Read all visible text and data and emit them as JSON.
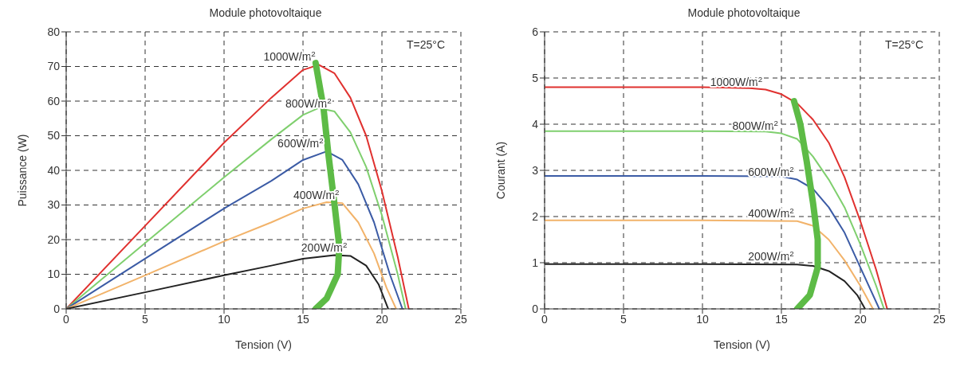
{
  "chart_data": [
    {
      "type": "line",
      "title": "Module photovoltaique",
      "xlabel": "Tension (V)",
      "ylabel": "Puissance (W)",
      "xlim": [
        0,
        25
      ],
      "xticks": [
        0,
        5,
        10,
        15,
        20,
        25
      ],
      "ylim": [
        0,
        80
      ],
      "yticks": [
        0,
        10,
        20,
        30,
        40,
        50,
        60,
        70,
        80
      ],
      "grid": true,
      "annotations": [
        "T=25°C"
      ],
      "series": [
        {
          "name": "1000W/m$^{2}$",
          "color": "#e0312f",
          "x": [
            0,
            5,
            10,
            13,
            15,
            16,
            17,
            18,
            19,
            20,
            21,
            21.7
          ],
          "values": [
            0,
            24,
            48,
            61,
            69,
            70.5,
            68,
            61,
            50,
            34,
            15,
            0
          ]
        },
        {
          "name": "800W/m$^{2}$",
          "color": "#7fcf6e",
          "x": [
            0,
            5,
            10,
            13,
            15,
            16,
            17,
            18,
            19,
            20,
            21,
            21.5
          ],
          "values": [
            0,
            19,
            38,
            49,
            56,
            58,
            57,
            51,
            41,
            27,
            10,
            0
          ]
        },
        {
          "name": "600W/m$^{2}$",
          "color": "#3b5ba5",
          "x": [
            0,
            5,
            10,
            13,
            15,
            16.5,
            17.5,
            18.5,
            19.5,
            20.5,
            21.3
          ],
          "values": [
            0,
            14.5,
            29,
            37,
            43,
            45.5,
            43,
            36,
            25,
            10,
            0
          ]
        },
        {
          "name": "400W/m$^{2}$",
          "color": "#f2b36a",
          "x": [
            0,
            5,
            10,
            13,
            15,
            16.5,
            17.5,
            18.5,
            19.5,
            20.3,
            20.9
          ],
          "values": [
            0,
            9.7,
            19.5,
            25,
            29,
            30.8,
            30.5,
            25,
            16,
            6,
            0
          ]
        },
        {
          "name": "200W/m$^{2}$",
          "color": "#222222",
          "x": [
            0,
            5,
            10,
            13,
            15,
            17,
            18,
            19,
            19.8,
            20.4
          ],
          "values": [
            0,
            4.8,
            9.7,
            12.5,
            14.5,
            15.5,
            15.3,
            12.5,
            7,
            0
          ]
        },
        {
          "color": "#5dbb46",
          "x": [
            15.8,
            16.3,
            16.6,
            17,
            17.3,
            17.2,
            16.5,
            15.8
          ],
          "values": [
            71,
            58,
            45,
            30,
            18,
            10,
            3,
            0
          ]
        }
      ]
    },
    {
      "type": "line",
      "title": "Module photovoltaique",
      "xlabel": "Tension (V)",
      "ylabel": "Courant (A)",
      "xlim": [
        0,
        25
      ],
      "xticks": [
        0,
        5,
        10,
        15,
        20,
        25
      ],
      "ylim": [
        0,
        6
      ],
      "yticks": [
        0,
        1,
        2,
        3,
        4,
        5,
        6
      ],
      "grid": true,
      "annotations": [
        "T=25°C"
      ],
      "series": [
        {
          "name": "1000W/m$^{2}$",
          "color": "#e0312f",
          "x": [
            0,
            10,
            13,
            14,
            15,
            16,
            17,
            18,
            19,
            20,
            21,
            21.7
          ],
          "values": [
            4.8,
            4.8,
            4.78,
            4.75,
            4.65,
            4.45,
            4.1,
            3.6,
            2.85,
            1.9,
            0.85,
            0
          ]
        },
        {
          "name": "800W/m$^{2}$",
          "color": "#7fcf6e",
          "x": [
            0,
            10,
            14,
            15,
            16,
            17,
            18,
            19,
            20,
            21,
            21.5
          ],
          "values": [
            3.85,
            3.85,
            3.84,
            3.8,
            3.68,
            3.3,
            2.8,
            2.2,
            1.4,
            0.5,
            0
          ]
        },
        {
          "name": "600W/m$^{2}$",
          "color": "#3b5ba5",
          "x": [
            0,
            10,
            15,
            16,
            17,
            18,
            19,
            20,
            21.2
          ],
          "values": [
            2.88,
            2.88,
            2.87,
            2.8,
            2.6,
            2.2,
            1.65,
            0.9,
            0
          ]
        },
        {
          "name": "400W/m$^{2}$",
          "color": "#f2b36a",
          "x": [
            0,
            10,
            16,
            17,
            18,
            19,
            20,
            20.8
          ],
          "values": [
            1.92,
            1.92,
            1.9,
            1.8,
            1.5,
            1.05,
            0.5,
            0
          ]
        },
        {
          "name": "200W/m$^{2}$",
          "color": "#222222",
          "x": [
            0,
            10,
            16,
            17,
            18,
            19,
            19.8,
            20.3
          ],
          "values": [
            0.97,
            0.97,
            0.96,
            0.93,
            0.82,
            0.6,
            0.3,
            0
          ]
        },
        {
          "color": "#5dbb46",
          "x": [
            15.8,
            16.2,
            16.6,
            17,
            17.3,
            17.3,
            16.8,
            16
          ],
          "values": [
            4.5,
            4,
            3.2,
            2.3,
            1.5,
            0.9,
            0.3,
            0
          ]
        }
      ]
    }
  ]
}
